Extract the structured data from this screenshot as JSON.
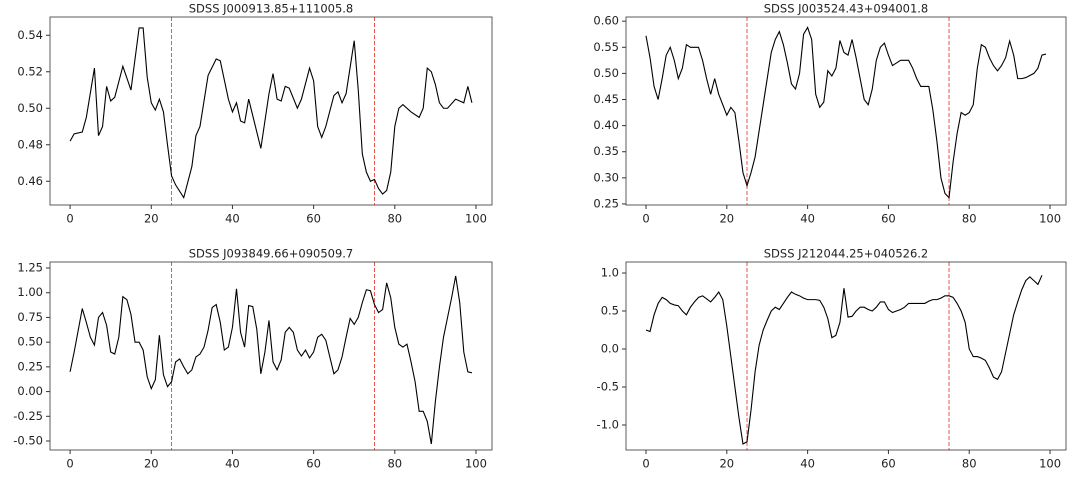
{
  "chart_data": [
    {
      "type": "line",
      "title": "SDSS J000913.85+111005.8",
      "color": "#000000",
      "x": [
        0,
        1,
        3,
        4,
        6,
        7,
        8,
        9,
        10,
        11,
        13,
        15,
        17,
        18,
        19,
        20,
        21,
        22,
        23,
        24,
        25,
        26,
        28,
        30,
        31,
        32,
        34,
        36,
        37,
        39,
        40,
        41,
        42,
        43,
        44,
        45,
        47,
        49,
        50,
        51,
        52,
        53,
        54,
        56,
        57,
        59,
        60,
        61,
        62,
        63,
        65,
        66,
        67,
        68,
        70,
        71,
        72,
        73,
        74,
        75,
        76,
        77,
        78,
        79,
        80,
        81,
        82,
        84,
        86,
        87,
        88,
        89,
        90,
        91,
        92,
        93,
        95,
        96,
        97,
        98,
        99
      ],
      "values": [
        0.482,
        0.486,
        0.487,
        0.495,
        0.522,
        0.485,
        0.49,
        0.512,
        0.504,
        0.506,
        0.523,
        0.51,
        0.544,
        0.544,
        0.517,
        0.503,
        0.499,
        0.505,
        0.498,
        0.48,
        0.463,
        0.458,
        0.451,
        0.468,
        0.485,
        0.49,
        0.518,
        0.527,
        0.526,
        0.505,
        0.498,
        0.503,
        0.493,
        0.492,
        0.505,
        0.496,
        0.478,
        0.508,
        0.519,
        0.505,
        0.504,
        0.512,
        0.511,
        0.5,
        0.505,
        0.522,
        0.515,
        0.49,
        0.484,
        0.49,
        0.507,
        0.509,
        0.503,
        0.508,
        0.537,
        0.51,
        0.475,
        0.465,
        0.46,
        0.461,
        0.456,
        0.453,
        0.455,
        0.465,
        0.49,
        0.5,
        0.502,
        0.498,
        0.495,
        0.5,
        0.522,
        0.52,
        0.513,
        0.503,
        0.5,
        0.5,
        0.505,
        0.504,
        0.503,
        0.512,
        0.503
      ],
      "xlim": [
        -4.95,
        103.95
      ],
      "ylim": [
        0.447,
        0.55
      ],
      "xticks": [
        0,
        20,
        40,
        60,
        80,
        100
      ],
      "yticks": [
        0.46,
        0.48,
        {
          "value": 0.5,
          "label": "0.50"
        },
        0.52,
        0.54
      ],
      "vlines": [
        25,
        75
      ],
      "vline_color": "#e8413c"
    },
    {
      "type": "line",
      "title": "SDSS J003524.43+094001.8",
      "color": "#000000",
      "x": [
        0,
        1,
        2,
        3,
        4,
        5,
        6,
        7,
        8,
        9,
        10,
        11,
        13,
        14,
        15,
        16,
        17,
        18,
        19,
        20,
        21,
        22,
        23,
        24,
        25,
        26,
        27,
        28,
        29,
        30,
        31,
        32,
        33,
        34,
        35,
        36,
        37,
        38,
        39,
        40,
        41,
        42,
        43,
        44,
        45,
        46,
        47,
        48,
        49,
        50,
        51,
        52,
        53,
        54,
        55,
        56,
        57,
        58,
        59,
        60,
        61,
        62,
        63,
        65,
        66,
        67,
        68,
        69,
        70,
        71,
        72,
        73,
        74,
        75,
        76,
        77,
        78,
        79,
        80,
        81,
        82,
        83,
        84,
        85,
        86,
        87,
        88,
        89,
        90,
        91,
        92,
        93,
        94,
        96,
        97,
        98,
        99
      ],
      "values": [
        0.572,
        0.53,
        0.475,
        0.45,
        0.49,
        0.535,
        0.55,
        0.525,
        0.49,
        0.51,
        0.555,
        0.55,
        0.55,
        0.525,
        0.49,
        0.46,
        0.49,
        0.46,
        0.44,
        0.42,
        0.435,
        0.425,
        0.37,
        0.31,
        0.285,
        0.31,
        0.34,
        0.39,
        0.44,
        0.49,
        0.54,
        0.565,
        0.58,
        0.555,
        0.52,
        0.48,
        0.47,
        0.5,
        0.575,
        0.588,
        0.565,
        0.46,
        0.435,
        0.445,
        0.505,
        0.495,
        0.51,
        0.563,
        0.54,
        0.535,
        0.565,
        0.53,
        0.49,
        0.45,
        0.44,
        0.47,
        0.525,
        0.55,
        0.558,
        0.535,
        0.515,
        0.52,
        0.525,
        0.525,
        0.51,
        0.49,
        0.475,
        0.475,
        0.475,
        0.43,
        0.37,
        0.3,
        0.27,
        0.262,
        0.33,
        0.385,
        0.425,
        0.42,
        0.425,
        0.44,
        0.51,
        0.555,
        0.55,
        0.53,
        0.515,
        0.505,
        0.515,
        0.53,
        0.562,
        0.535,
        0.49,
        0.49,
        0.492,
        0.5,
        0.51,
        0.535,
        0.537
      ],
      "xlim": [
        -4.95,
        103.95
      ],
      "ylim": [
        0.248,
        0.608
      ],
      "xticks": [
        0,
        20,
        40,
        60,
        80,
        100
      ],
      "yticks": [
        0.25,
        {
          "value": 0.3,
          "label": "0.30"
        },
        0.35,
        {
          "value": 0.4,
          "label": "0.40"
        },
        0.45,
        {
          "value": 0.5,
          "label": "0.50"
        },
        0.55,
        {
          "value": 0.6,
          "label": "0.60"
        }
      ],
      "vlines": [
        25,
        75
      ],
      "vline_color": "#e8413c"
    },
    {
      "type": "line",
      "title": "SDSS J093849.66+090509.7",
      "color": "#000000",
      "x": [
        0,
        1,
        2,
        3,
        4,
        5,
        6,
        7,
        8,
        9,
        10,
        11,
        12,
        13,
        14,
        15,
        16,
        17,
        18,
        19,
        20,
        21,
        22,
        23,
        24,
        25,
        26,
        27,
        28,
        29,
        30,
        31,
        32,
        33,
        34,
        35,
        36,
        37,
        38,
        39,
        40,
        41,
        42,
        43,
        44,
        45,
        46,
        47,
        48,
        49,
        50,
        51,
        52,
        53,
        54,
        55,
        56,
        57,
        58,
        59,
        60,
        61,
        62,
        63,
        64,
        65,
        66,
        67,
        68,
        69,
        70,
        71,
        72,
        73,
        74,
        75,
        76,
        77,
        78,
        79,
        80,
        81,
        82,
        83,
        84,
        85,
        86,
        87,
        88,
        89,
        90,
        91,
        92,
        93,
        94,
        95,
        96,
        97,
        98,
        99
      ],
      "values": [
        0.2,
        0.4,
        0.62,
        0.84,
        0.7,
        0.55,
        0.47,
        0.75,
        0.8,
        0.67,
        0.4,
        0.38,
        0.55,
        0.96,
        0.93,
        0.78,
        0.5,
        0.5,
        0.42,
        0.15,
        0.03,
        0.12,
        0.57,
        0.17,
        0.05,
        0.1,
        0.3,
        0.33,
        0.25,
        0.18,
        0.22,
        0.35,
        0.38,
        0.45,
        0.62,
        0.85,
        0.88,
        0.7,
        0.42,
        0.45,
        0.65,
        1.04,
        0.6,
        0.45,
        0.87,
        0.86,
        0.63,
        0.18,
        0.4,
        0.72,
        0.3,
        0.22,
        0.32,
        0.6,
        0.65,
        0.6,
        0.42,
        0.36,
        0.42,
        0.34,
        0.4,
        0.55,
        0.58,
        0.52,
        0.35,
        0.18,
        0.22,
        0.35,
        0.55,
        0.74,
        0.68,
        0.75,
        0.9,
        1.03,
        1.02,
        0.88,
        0.8,
        0.83,
        1.1,
        0.95,
        0.65,
        0.48,
        0.45,
        0.48,
        0.3,
        0.1,
        -0.2,
        -0.2,
        -0.3,
        -0.53,
        -0.1,
        0.25,
        0.55,
        0.75,
        0.95,
        1.17,
        0.9,
        0.4,
        0.2,
        0.19
      ],
      "xlim": [
        -4.95,
        103.95
      ],
      "ylim": [
        -0.591,
        1.311
      ],
      "xticks": [
        0,
        20,
        40,
        60,
        80,
        100
      ],
      "yticks": [
        {
          "value": -0.5,
          "label": "-0.50"
        },
        -0.25,
        {
          "value": 0,
          "label": "0.00"
        },
        0.25,
        {
          "value": 0.5,
          "label": "0.50"
        },
        0.75,
        {
          "value": 1,
          "label": "1.00"
        },
        1.25
      ],
      "vlines": [
        25,
        75
      ],
      "vline_color": "#e8413c"
    },
    {
      "type": "line",
      "title": "SDSS J212044.25+040526.2",
      "color": "#000000",
      "x": [
        0,
        1,
        2,
        3,
        4,
        5,
        6,
        7,
        8,
        9,
        10,
        11,
        12,
        13,
        14,
        15,
        16,
        17,
        18,
        19,
        20,
        21,
        22,
        23,
        24,
        25,
        26,
        27,
        28,
        29,
        30,
        31,
        32,
        33,
        34,
        35,
        36,
        37,
        38,
        39,
        40,
        42,
        43,
        44,
        45,
        46,
        47,
        48,
        49,
        50,
        51,
        52,
        53,
        54,
        55,
        56,
        57,
        58,
        59,
        60,
        61,
        62,
        63,
        64,
        65,
        66,
        68,
        69,
        70,
        71,
        72,
        73,
        74,
        75,
        76,
        77,
        78,
        79,
        80,
        81,
        82,
        83,
        84,
        85,
        86,
        87,
        88,
        89,
        90,
        91,
        92,
        93,
        94,
        95,
        96,
        97,
        98
      ],
      "values": [
        0.25,
        0.23,
        0.45,
        0.6,
        0.68,
        0.65,
        0.6,
        0.58,
        0.57,
        0.5,
        0.45,
        0.55,
        0.62,
        0.68,
        0.7,
        0.66,
        0.62,
        0.68,
        0.75,
        0.65,
        0.3,
        -0.1,
        -0.5,
        -0.9,
        -1.25,
        -1.22,
        -0.8,
        -0.3,
        0.05,
        0.25,
        0.38,
        0.5,
        0.55,
        0.52,
        0.6,
        0.68,
        0.75,
        0.72,
        0.7,
        0.67,
        0.65,
        0.65,
        0.64,
        0.55,
        0.4,
        0.15,
        0.18,
        0.35,
        0.8,
        0.42,
        0.43,
        0.5,
        0.55,
        0.55,
        0.52,
        0.5,
        0.55,
        0.62,
        0.62,
        0.52,
        0.48,
        0.5,
        0.52,
        0.55,
        0.6,
        0.6,
        0.6,
        0.6,
        0.63,
        0.65,
        0.65,
        0.67,
        0.7,
        0.7,
        0.68,
        0.6,
        0.5,
        0.35,
        0.0,
        -0.1,
        -0.1,
        -0.12,
        -0.15,
        -0.25,
        -0.37,
        -0.4,
        -0.3,
        -0.05,
        0.2,
        0.45,
        0.62,
        0.78,
        0.9,
        0.95,
        0.9,
        0.85,
        0.97
      ],
      "xlim": [
        -4.95,
        103.95
      ],
      "ylim": [
        -1.329,
        1.145
      ],
      "xticks": [
        0,
        20,
        40,
        60,
        80,
        100
      ],
      "yticks": [
        {
          "value": -1,
          "label": "-1.0"
        },
        -0.5,
        {
          "value": 0,
          "label": "0.0"
        },
        0.5,
        {
          "value": 1,
          "label": "1.0"
        }
      ],
      "vlines": [
        25,
        75
      ],
      "vline_color": "#e8413c"
    }
  ]
}
